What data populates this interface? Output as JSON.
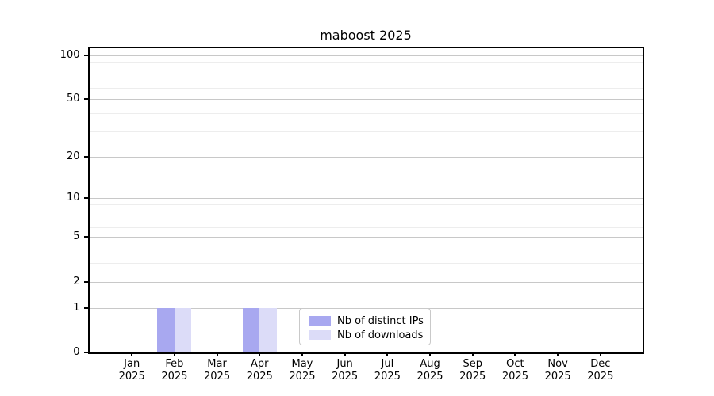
{
  "chart_data": {
    "type": "bar",
    "title": "maboost 2025",
    "categories": [
      "Jan",
      "Feb",
      "Mar",
      "Apr",
      "May",
      "Jun",
      "Jul",
      "Aug",
      "Sep",
      "Oct",
      "Nov",
      "Dec"
    ],
    "year_label": "2025",
    "series": [
      {
        "name": "Nb of distinct IPs",
        "color": "#a8a8f0",
        "values": [
          0,
          1,
          0,
          1,
          0,
          0,
          0,
          0,
          0,
          0,
          0,
          0
        ]
      },
      {
        "name": "Nb of downloads",
        "color": "#dcdcf8",
        "values": [
          0,
          1,
          0,
          1,
          0,
          0,
          0,
          0,
          0,
          0,
          0,
          0
        ]
      }
    ],
    "y_axis": {
      "scale": "log10(value+1)",
      "min": 0,
      "max": 113,
      "major_ticks": [
        100,
        50,
        20,
        10,
        5,
        2,
        1,
        0
      ],
      "minor_ticks": [
        90,
        80,
        70,
        60,
        40,
        30,
        9,
        8,
        7,
        6,
        4,
        3
      ]
    },
    "x_axis": {
      "tick_label_format": "month over year"
    },
    "grid": true,
    "legend_position": "bottom-center",
    "colors": {
      "grid_major": "#c8c8c8",
      "grid_minor": "#ededed",
      "axis": "#000000",
      "background": "#ffffff"
    }
  }
}
